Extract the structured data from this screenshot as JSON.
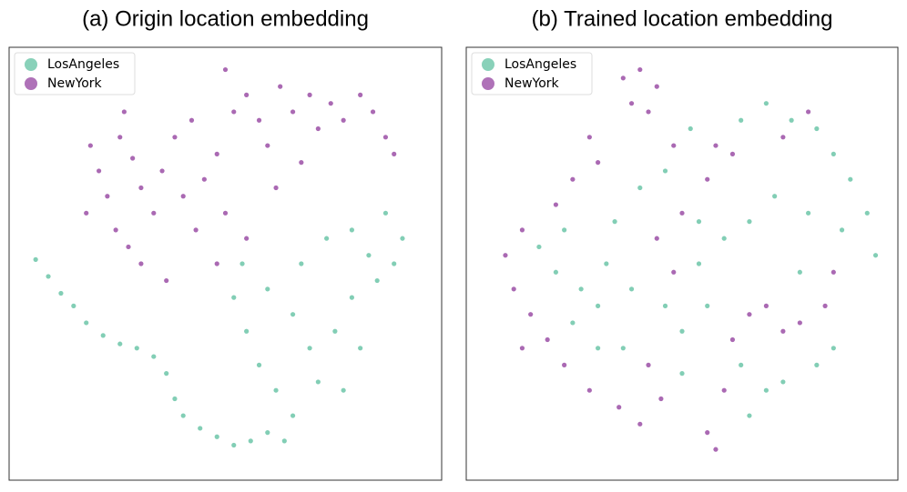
{
  "chart_data": [
    {
      "type": "scatter",
      "title": "(a) Origin location embedding",
      "xlim": [
        0,
        100
      ],
      "ylim": [
        0,
        100
      ],
      "legend": "upper left",
      "series": [
        {
          "name": "LosAngeles",
          "color": "#6cc5a8",
          "x": [
            5,
            8,
            11,
            14,
            17,
            21,
            25,
            29,
            33,
            36,
            38,
            40,
            44,
            48,
            52,
            56,
            60,
            64,
            66,
            62,
            58,
            55,
            52,
            54,
            60,
            66,
            70,
            72,
            68,
            74,
            80,
            84,
            86,
            90,
            92,
            88,
            80,
            76,
            82,
            78
          ],
          "y": [
            51,
            47,
            43,
            40,
            36,
            33,
            31,
            30,
            28,
            24,
            18,
            14,
            11,
            9,
            7,
            8,
            10,
            8,
            14,
            20,
            26,
            34,
            42,
            50,
            44,
            38,
            30,
            22,
            50,
            56,
            58,
            52,
            46,
            50,
            56,
            62,
            42,
            34,
            30,
            20
          ]
        },
        {
          "name": "NewYork",
          "color": "#9b4fa6",
          "x": [
            18,
            20,
            22,
            17,
            25,
            28,
            30,
            24,
            33,
            35,
            38,
            40,
            43,
            30,
            36,
            45,
            48,
            50,
            52,
            55,
            58,
            60,
            63,
            66,
            70,
            72,
            75,
            78,
            82,
            85,
            88,
            90,
            48,
            55,
            62,
            68,
            26,
            42,
            50,
            27
          ],
          "y": [
            78,
            72,
            66,
            62,
            80,
            75,
            68,
            58,
            62,
            72,
            80,
            66,
            58,
            50,
            46,
            70,
            76,
            62,
            86,
            90,
            84,
            78,
            92,
            86,
            90,
            82,
            88,
            84,
            90,
            86,
            80,
            76,
            50,
            56,
            68,
            74,
            86,
            84,
            96,
            54
          ]
        }
      ]
    },
    {
      "type": "scatter",
      "title": "(b) Trained location embedding",
      "xlim": [
        0,
        100
      ],
      "ylim": [
        0,
        100
      ],
      "legend": "upper left",
      "series": [
        {
          "name": "LosAngeles",
          "color": "#6cc5a8",
          "x": [
            64,
            70,
            76,
            82,
            86,
            90,
            94,
            96,
            88,
            80,
            72,
            66,
            60,
            54,
            56,
            50,
            46,
            38,
            32,
            30,
            26,
            20,
            16,
            22,
            34,
            40,
            46,
            52,
            24,
            30,
            36,
            50,
            64,
            70,
            66,
            74,
            82,
            78,
            86,
            54
          ],
          "y": [
            84,
            88,
            84,
            82,
            76,
            70,
            62,
            52,
            58,
            62,
            66,
            60,
            56,
            50,
            40,
            34,
            40,
            44,
            50,
            40,
            44,
            48,
            54,
            58,
            60,
            68,
            72,
            82,
            36,
            30,
            30,
            24,
            26,
            20,
            14,
            22,
            26,
            48,
            30,
            60
          ]
        },
        {
          "name": "NewYork",
          "color": "#9b4fa6",
          "x": [
            36,
            40,
            44,
            38,
            42,
            28,
            30,
            24,
            20,
            12,
            8,
            10,
            14,
            18,
            12,
            22,
            28,
            35,
            40,
            45,
            42,
            56,
            58,
            60,
            62,
            66,
            70,
            74,
            78,
            84,
            86,
            48,
            44,
            50,
            56,
            58,
            62,
            48,
            74,
            80
          ],
          "y": [
            94,
            96,
            92,
            88,
            86,
            80,
            74,
            70,
            64,
            58,
            52,
            44,
            38,
            32,
            30,
            26,
            20,
            16,
            12,
            18,
            26,
            10,
            6,
            20,
            32,
            38,
            40,
            34,
            36,
            40,
            48,
            48,
            56,
            62,
            70,
            78,
            76,
            78,
            80,
            86
          ]
        }
      ]
    }
  ]
}
